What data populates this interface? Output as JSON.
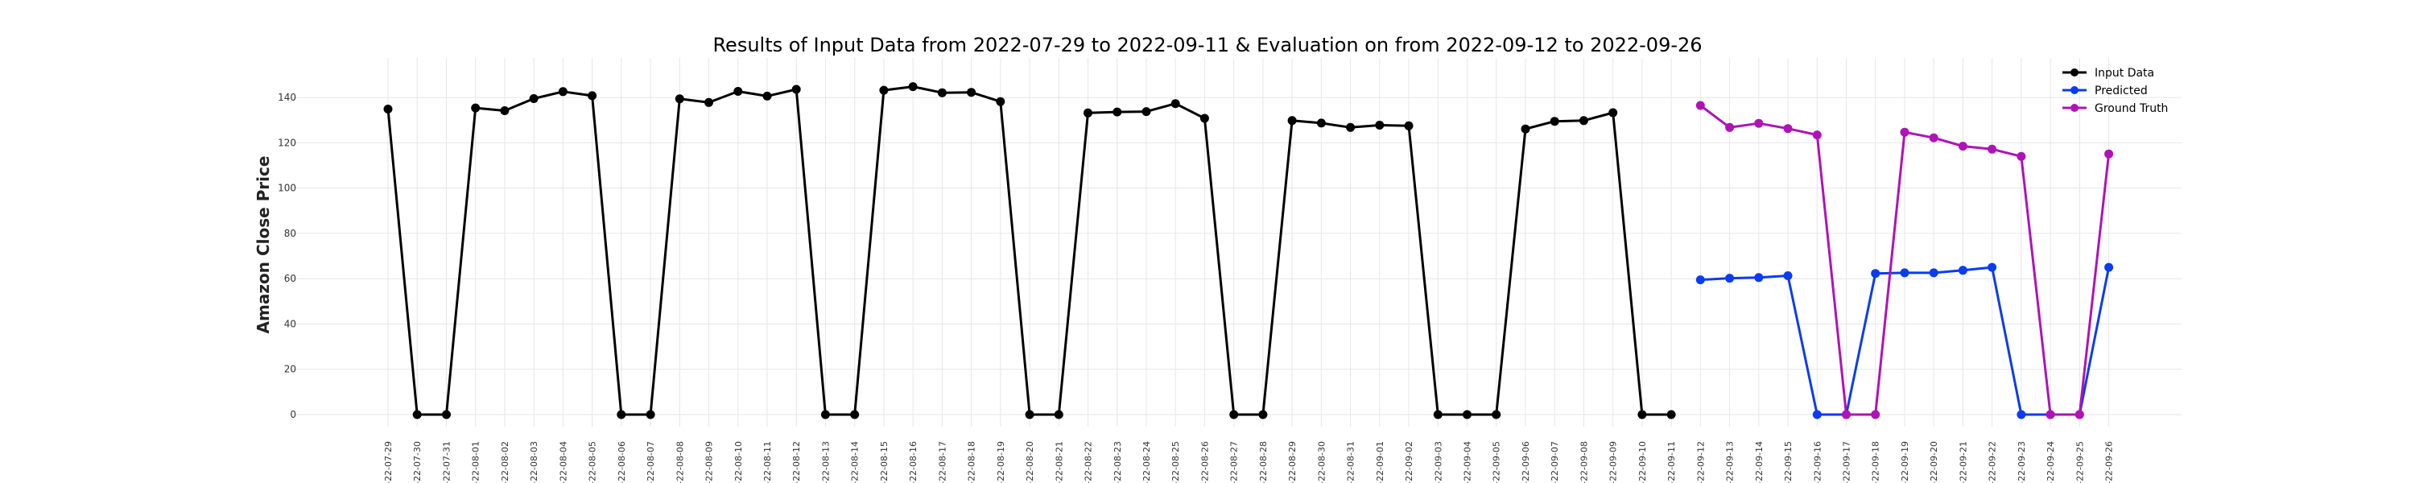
{
  "chart_data": {
    "type": "line",
    "title": "Results of Input Data from 2022-07-29 to 2022-09-11 & Evaluation on from 2022-09-12 to 2022-09-26",
    "xlabel": "",
    "ylabel": "Amazon Close Price",
    "ylim": [
      0,
      150
    ],
    "yticks": [
      0,
      20,
      40,
      60,
      80,
      100,
      120,
      140
    ],
    "grid": true,
    "legend_placement": "top-right",
    "x": [
      "2022-07-29",
      "2022-07-30",
      "2022-07-31",
      "2022-08-01",
      "2022-08-02",
      "2022-08-03",
      "2022-08-04",
      "2022-08-05",
      "2022-08-06",
      "2022-08-07",
      "2022-08-08",
      "2022-08-09",
      "2022-08-10",
      "2022-08-11",
      "2022-08-12",
      "2022-08-13",
      "2022-08-14",
      "2022-08-15",
      "2022-08-16",
      "2022-08-17",
      "2022-08-18",
      "2022-08-19",
      "2022-08-20",
      "2022-08-21",
      "2022-08-22",
      "2022-08-23",
      "2022-08-24",
      "2022-08-25",
      "2022-08-26",
      "2022-08-27",
      "2022-08-28",
      "2022-08-29",
      "2022-08-30",
      "2022-08-31",
      "2022-09-01",
      "2022-09-02",
      "2022-09-03",
      "2022-09-04",
      "2022-09-05",
      "2022-09-06",
      "2022-09-07",
      "2022-09-08",
      "2022-09-09",
      "2022-09-10",
      "2022-09-11",
      "2022-09-12",
      "2022-09-13",
      "2022-09-14",
      "2022-09-15",
      "2022-09-16",
      "2022-09-17",
      "2022-09-18",
      "2022-09-19",
      "2022-09-20",
      "2022-09-21",
      "2022-09-22",
      "2022-09-23",
      "2022-09-24",
      "2022-09-25",
      "2022-09-26"
    ],
    "x_tick_labels": [
      "-22-07-29",
      "-22-07-30",
      "-22-07-31",
      "-22-08-01",
      "-22-08-02",
      "-22-08-03",
      "-22-08-04",
      "-22-08-05",
      "-22-08-06",
      "-22-08-07",
      "-22-08-08",
      "-22-08-09",
      "-22-08-10",
      "-22-08-11",
      "-22-08-12",
      "-22-08-13",
      "-22-08-14",
      "-22-08-15",
      "-22-08-16",
      "-22-08-17",
      "-22-08-18",
      "-22-08-19",
      "-22-08-20",
      "-22-08-21",
      "-22-08-22",
      "-22-08-23",
      "-22-08-24",
      "-22-08-25",
      "-22-08-26",
      "-22-08-27",
      "-22-08-28",
      "-22-08-29",
      "-22-08-30",
      "-22-08-31",
      "-22-09-01",
      "-22-09-02",
      "-22-09-03",
      "-22-09-04",
      "-22-09-05",
      "-22-09-06",
      "-22-09-07",
      "-22-09-08",
      "-22-09-09",
      "-22-09-10",
      "-22-09-11",
      "-22-09-12",
      "-22-09-13",
      "-22-09-14",
      "-22-09-15",
      "-22-09-16",
      "-22-09-17",
      "-22-09-18",
      "-22-09-19",
      "-22-09-20",
      "-22-09-21",
      "-22-09-22",
      "-22-09-23",
      "-22-09-24",
      "-22-09-25",
      "-22-09-26"
    ],
    "series": [
      {
        "name": "Input Data",
        "color": "#000000",
        "x": [
          "2022-07-29",
          "2022-07-30",
          "2022-07-31",
          "2022-08-01",
          "2022-08-02",
          "2022-08-03",
          "2022-08-04",
          "2022-08-05",
          "2022-08-06",
          "2022-08-07",
          "2022-08-08",
          "2022-08-09",
          "2022-08-10",
          "2022-08-11",
          "2022-08-12",
          "2022-08-13",
          "2022-08-14",
          "2022-08-15",
          "2022-08-16",
          "2022-08-17",
          "2022-08-18",
          "2022-08-19",
          "2022-08-20",
          "2022-08-21",
          "2022-08-22",
          "2022-08-23",
          "2022-08-24",
          "2022-08-25",
          "2022-08-26",
          "2022-08-27",
          "2022-08-28",
          "2022-08-29",
          "2022-08-30",
          "2022-08-31",
          "2022-09-01",
          "2022-09-02",
          "2022-09-03",
          "2022-09-04",
          "2022-09-05",
          "2022-09-06",
          "2022-09-07",
          "2022-09-08",
          "2022-09-09",
          "2022-09-10",
          "2022-09-11"
        ],
        "values": [
          134.9,
          0,
          0,
          135.4,
          134.2,
          139.5,
          142.6,
          140.8,
          0,
          0,
          139.4,
          137.8,
          142.7,
          140.6,
          143.6,
          0,
          0,
          143.2,
          144.8,
          142.1,
          142.3,
          138.2,
          0,
          0,
          133.2,
          133.6,
          133.8,
          137.3,
          130.8,
          0,
          0,
          129.8,
          128.7,
          126.8,
          127.8,
          127.5,
          0,
          0,
          0,
          126.1,
          129.5,
          129.8,
          133.3,
          0,
          0
        ]
      },
      {
        "name": "Predicted",
        "color": "#0a3cf0",
        "x": [
          "2022-09-12",
          "2022-09-13",
          "2022-09-14",
          "2022-09-15",
          "2022-09-16",
          "2022-09-17",
          "2022-09-18",
          "2022-09-19",
          "2022-09-20",
          "2022-09-21",
          "2022-09-22",
          "2022-09-23",
          "2022-09-24",
          "2022-09-25",
          "2022-09-26"
        ],
        "values": [
          59.5,
          60.2,
          60.5,
          61.3,
          0,
          0,
          62.3,
          62.6,
          62.6,
          63.7,
          65.0,
          0,
          0,
          0,
          65.0
        ]
      },
      {
        "name": "Ground Truth",
        "color": "#b012b8",
        "x": [
          "2022-09-12",
          "2022-09-13",
          "2022-09-14",
          "2022-09-15",
          "2022-09-16",
          "2022-09-17",
          "2022-09-18",
          "2022-09-19",
          "2022-09-20",
          "2022-09-21",
          "2022-09-22",
          "2022-09-23",
          "2022-09-24",
          "2022-09-25",
          "2022-09-26"
        ],
        "values": [
          136.5,
          126.8,
          128.6,
          126.3,
          123.5,
          0,
          0,
          124.7,
          122.2,
          118.5,
          117.2,
          114.0,
          0,
          0,
          115.1
        ]
      }
    ]
  }
}
